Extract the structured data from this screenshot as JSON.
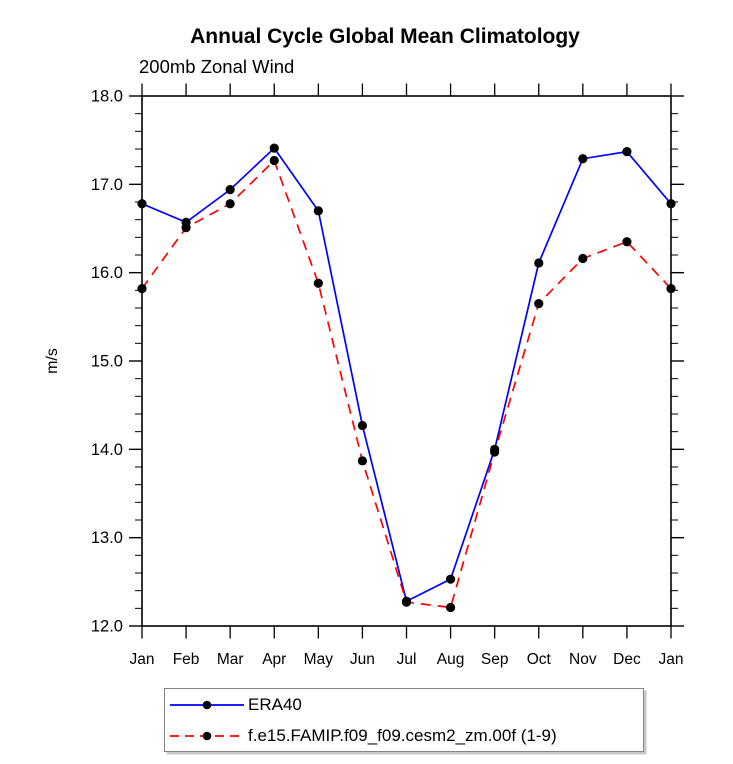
{
  "header": {
    "title": "Annual Cycle Global Mean Climatology",
    "subtitle": "200mb Zonal Wind"
  },
  "chart_data": {
    "type": "line",
    "categories": [
      "Jan",
      "Feb",
      "Mar",
      "Apr",
      "May",
      "Jun",
      "Jul",
      "Aug",
      "Sep",
      "Oct",
      "Nov",
      "Dec",
      "Jan"
    ],
    "xlabel": "",
    "ylabel": "m/s",
    "ylim": [
      12.0,
      18.0
    ],
    "ytick_major": 1.0,
    "ytick_minor": 0.2,
    "ytick_label_format": "one_decimal",
    "grid": false,
    "legend_position": "bottom-left",
    "axis_color": "#000000",
    "marker_color": "#000000",
    "series": [
      {
        "name": "ERA40",
        "color": "#0000ff",
        "line_style": "solid",
        "marker": "circle",
        "values": [
          16.78,
          16.57,
          16.94,
          17.41,
          16.7,
          14.27,
          12.28,
          12.53,
          14.0,
          16.11,
          17.29,
          17.37,
          16.78
        ]
      },
      {
        "name": "f.e15.FAMIP.f09_f09.cesm2_zm.00f (1-9)",
        "color": "#ff0000",
        "line_style": "dashed",
        "marker": "circle",
        "values": [
          15.82,
          16.51,
          16.78,
          17.27,
          15.88,
          13.87,
          12.27,
          12.21,
          13.97,
          15.65,
          16.16,
          16.35,
          15.82
        ]
      }
    ]
  }
}
